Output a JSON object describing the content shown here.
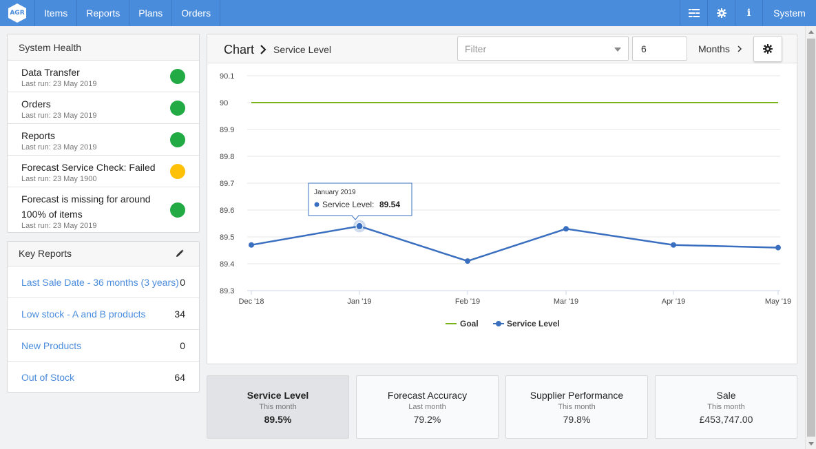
{
  "nav": {
    "logo": "AGR",
    "items": [
      "Items",
      "Reports",
      "Plans",
      "Orders"
    ],
    "icons": [
      "list-icon",
      "gear-icon",
      "info-icon"
    ],
    "system_label": "System"
  },
  "health": {
    "title": "System Health",
    "items": [
      {
        "name": "Data Transfer",
        "sub": "Last run: 23 May 2019",
        "status": "green"
      },
      {
        "name": "Orders",
        "sub": "Last run: 23 May 2019",
        "status": "green"
      },
      {
        "name": "Reports",
        "sub": "Last run: 23 May 2019",
        "status": "green"
      },
      {
        "name": "Forecast Service Check: Failed",
        "sub": "Last run: 23 May 1900",
        "status": "yellow"
      },
      {
        "name": "Forecast is missing for around 100% of items",
        "sub": "Last run: 23 May 2019",
        "status": "green"
      }
    ]
  },
  "key_reports": {
    "title": "Key Reports",
    "items": [
      {
        "label": "Last Sale Date - 36 months (3 years)",
        "value": "0"
      },
      {
        "label": "Low stock - A and B products",
        "value": "34"
      },
      {
        "label": "New Products",
        "value": "0"
      },
      {
        "label": "Out of Stock",
        "value": "64"
      }
    ]
  },
  "chart_panel": {
    "title": "Chart",
    "subtitle": "Service Level",
    "filter_placeholder": "Filter",
    "months_value": "6",
    "months_label": "Months"
  },
  "tooltip": {
    "date": "January 2019",
    "series": "Service Level",
    "value": "89.54"
  },
  "chart_data": {
    "type": "line",
    "categories": [
      "Dec '18",
      "Jan '19",
      "Feb '19",
      "Mar '19",
      "Apr '19",
      "May '19"
    ],
    "series": [
      {
        "name": "Goal",
        "values": [
          90,
          90,
          90,
          90,
          90,
          90
        ],
        "color": "#7ab317"
      },
      {
        "name": "Service Level",
        "values": [
          89.47,
          89.54,
          89.41,
          89.53,
          89.47,
          89.46
        ],
        "color": "#3a6fc0"
      }
    ],
    "yticks": [
      "90.1",
      "90",
      "89.9",
      "89.8",
      "89.7",
      "89.6",
      "89.5",
      "89.4",
      "89.3"
    ],
    "ylim": [
      89.3,
      90.1
    ],
    "grid": true,
    "legend": "bottom"
  },
  "kpis": [
    {
      "title": "Service Level",
      "sub": "This month",
      "value": "89.5%",
      "active": true
    },
    {
      "title": "Forecast Accuracy",
      "sub": "Last month",
      "value": "79.2%",
      "active": false
    },
    {
      "title": "Supplier Performance",
      "sub": "This month",
      "value": "79.8%",
      "active": false
    },
    {
      "title": "Sale",
      "sub": "This month",
      "value": "£453,747.00",
      "active": false
    }
  ]
}
